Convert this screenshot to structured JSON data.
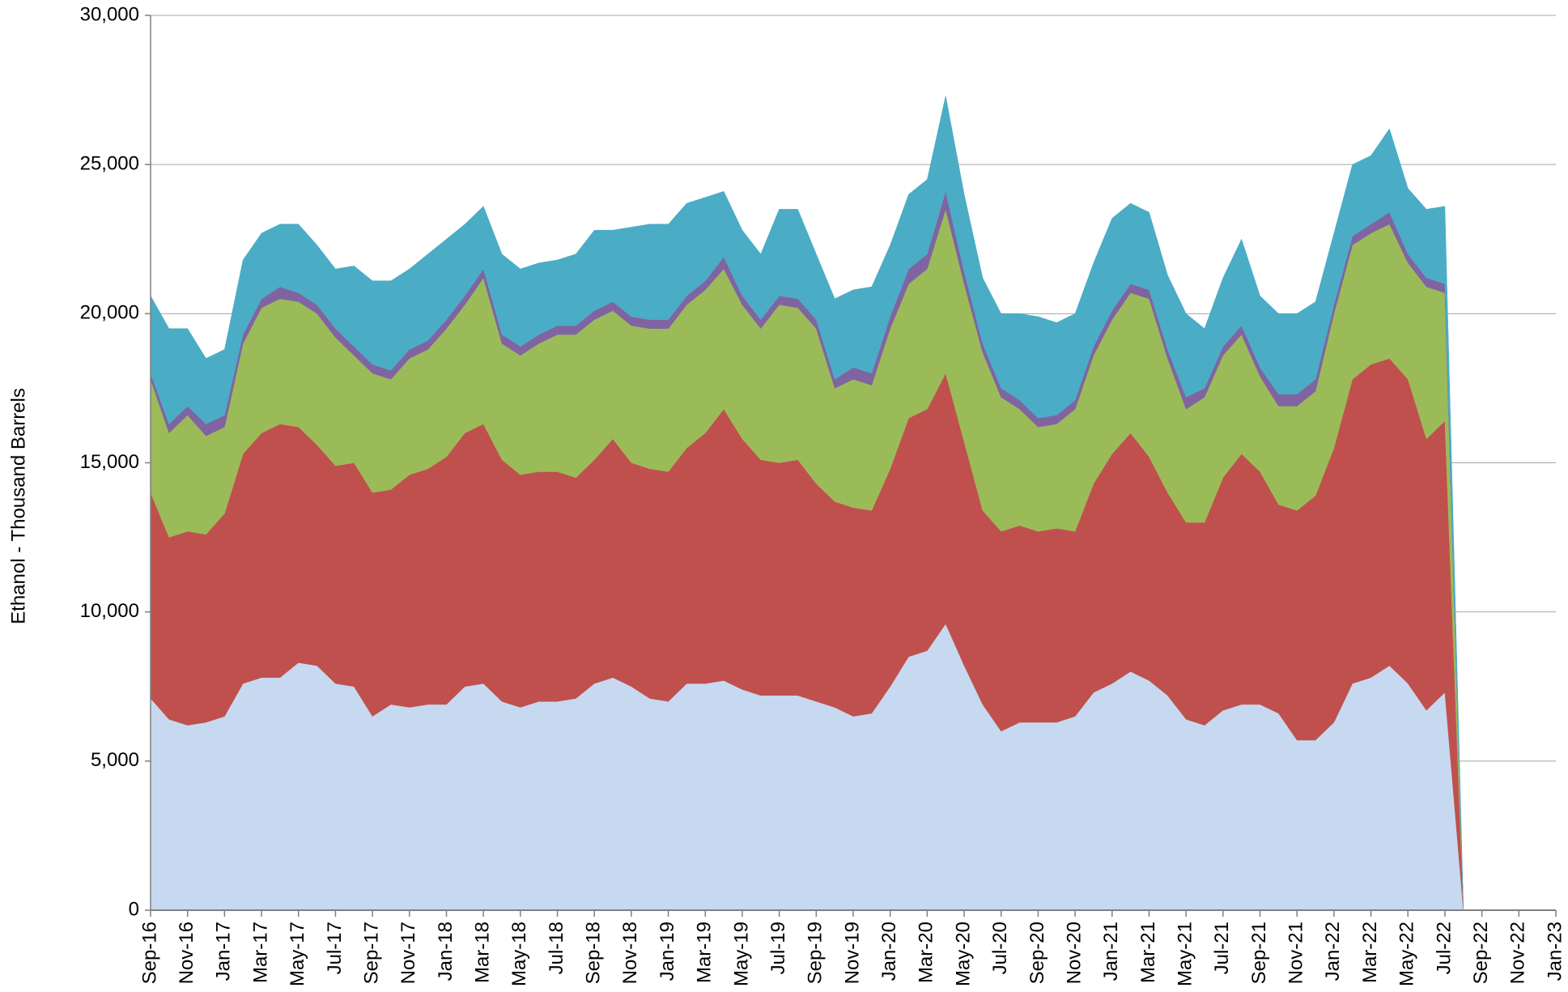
{
  "chart_data": {
    "type": "stacked_area",
    "y_label": "Ethanol - Thousand Barrels",
    "categories": [
      "Sep-16",
      null,
      "Nov-16",
      null,
      "Jan-17",
      null,
      "Mar-17",
      null,
      "May-17",
      null,
      "Jul-17",
      null,
      "Sep-17",
      null,
      "Nov-17",
      null,
      "Jan-18",
      null,
      "Mar-18",
      null,
      "May-18",
      null,
      "Jul-18",
      null,
      "Sep-18",
      null,
      "Nov-18",
      null,
      "Jan-19",
      null,
      "Mar-19",
      null,
      "May-19",
      null,
      "Jul-19",
      null,
      "Sep-19",
      null,
      "Nov-19",
      null,
      "Jan-20",
      null,
      "Mar-20",
      null,
      "May-20",
      null,
      "Jul-20",
      null,
      "Sep-20",
      null,
      "Nov-20",
      null,
      "Jan-21",
      null,
      "Mar-21",
      null,
      "May-21",
      null,
      "Jul-21",
      null,
      "Sep-21",
      null,
      "Nov-21",
      null,
      "Jan-22",
      null,
      "Mar-22",
      null,
      "May-22",
      null,
      "Jul-22",
      null,
      "Sep-22",
      null,
      "Nov-22",
      null,
      "Jan-23"
    ],
    "series": [
      {
        "color": "#c6d9f1",
        "values": [
          7100,
          6400,
          6200,
          6300,
          6500,
          7600,
          7800,
          7800,
          8300,
          8200,
          7600,
          7500,
          6500,
          6900,
          6800,
          6900,
          6900,
          7500,
          7600,
          7000,
          6800,
          7000,
          7000,
          7100,
          7600,
          7800,
          7500,
          7100,
          7000,
          7600,
          7600,
          7700,
          7400,
          7200,
          7200,
          7200,
          7000,
          6800,
          6500,
          6600,
          7500,
          8500,
          8700,
          9600,
          8200,
          6900,
          6000,
          6300,
          6300,
          6300,
          6500,
          7300,
          7600,
          8000,
          7700,
          7200,
          6400,
          6200,
          6700,
          6900,
          6900,
          6600,
          5700,
          5700,
          6300,
          7600,
          7800,
          8200,
          7600,
          6700,
          7300,
          0,
          0,
          0,
          0,
          0,
          0
        ]
      },
      {
        "color": "#c0504d",
        "values": [
          6900,
          6100,
          6500,
          6300,
          6800,
          7700,
          8200,
          8500,
          7900,
          7400,
          7300,
          7500,
          7500,
          7200,
          7800,
          7900,
          8300,
          8500,
          8700,
          8100,
          7800,
          7700,
          7700,
          7400,
          7500,
          8000,
          7500,
          7700,
          7700,
          7900,
          8400,
          9100,
          8400,
          7900,
          7800,
          7900,
          7300,
          6900,
          7000,
          6800,
          7300,
          8000,
          8100,
          8400,
          7500,
          6500,
          6700,
          6600,
          6400,
          6500,
          6200,
          7000,
          7700,
          8000,
          7500,
          6800,
          6600,
          6800,
          7800,
          8400,
          7800,
          7000,
          7700,
          8200,
          9200,
          10200,
          10500,
          10300,
          10200,
          9100,
          9100,
          0,
          0,
          0,
          0,
          0,
          0
        ]
      },
      {
        "color": "#9bbb59",
        "values": [
          3800,
          3500,
          3900,
          3300,
          2900,
          3700,
          4200,
          4200,
          4200,
          4400,
          4300,
          3600,
          4000,
          3700,
          3900,
          4000,
          4300,
          4300,
          4900,
          3900,
          4000,
          4300,
          4600,
          4800,
          4700,
          4300,
          4600,
          4700,
          4800,
          4800,
          4800,
          4700,
          4500,
          4400,
          5300,
          5100,
          5200,
          3800,
          4300,
          4200,
          4700,
          4500,
          4700,
          5500,
          5300,
          5300,
          4500,
          3900,
          3500,
          3500,
          4100,
          4300,
          4500,
          4700,
          5300,
          4500,
          3800,
          4200,
          4100,
          4000,
          3200,
          3300,
          3500,
          3500,
          4500,
          4500,
          4400,
          4500,
          3900,
          5100,
          4300,
          0,
          0,
          0,
          0,
          0,
          0
        ]
      },
      {
        "color": "#8064a2",
        "values": [
          200,
          300,
          300,
          400,
          400,
          300,
          300,
          400,
          300,
          300,
          300,
          300,
          300,
          300,
          300,
          300,
          300,
          300,
          300,
          300,
          300,
          300,
          300,
          300,
          300,
          300,
          300,
          300,
          300,
          300,
          300,
          400,
          300,
          300,
          300,
          300,
          300,
          300,
          400,
          400,
          400,
          500,
          500,
          600,
          400,
          300,
          300,
          300,
          300,
          300,
          300,
          300,
          300,
          300,
          300,
          300,
          400,
          300,
          300,
          300,
          300,
          400,
          400,
          400,
          300,
          300,
          300,
          400,
          300,
          300,
          300,
          0,
          0,
          0,
          0,
          0,
          0
        ]
      },
      {
        "color": "#4bacc6",
        "values": [
          2600,
          3200,
          2600,
          2200,
          2200,
          2500,
          2200,
          2100,
          2300,
          2000,
          2000,
          2700,
          2800,
          3000,
          2700,
          2900,
          2700,
          2400,
          2100,
          2700,
          2600,
          2400,
          2200,
          2400,
          2700,
          2400,
          3000,
          3200,
          3200,
          3100,
          2800,
          2200,
          2200,
          2200,
          2900,
          3000,
          2200,
          2700,
          2600,
          2900,
          2400,
          2500,
          2500,
          3200,
          2600,
          2200,
          2500,
          2900,
          3400,
          3100,
          2900,
          2800,
          3100,
          2700,
          2600,
          2500,
          2800,
          2000,
          2300,
          2900,
          2400,
          2700,
          2700,
          2600,
          2400,
          2400,
          2300,
          2800,
          2200,
          2300,
          2600,
          0,
          0,
          0,
          0,
          0,
          0
        ]
      }
    ],
    "ylim": [
      0,
      30000
    ],
    "yticks": [
      0,
      {
        "value": 5000,
        "label": "5,000"
      },
      {
        "value": 10000,
        "label": "10,000"
      },
      {
        "value": 15000,
        "label": "15,000"
      },
      {
        "value": 20000,
        "label": "20,000"
      },
      {
        "value": 25000,
        "label": "25,000"
      },
      {
        "value": 30000,
        "label": "30,000"
      }
    ],
    "grid": true
  }
}
